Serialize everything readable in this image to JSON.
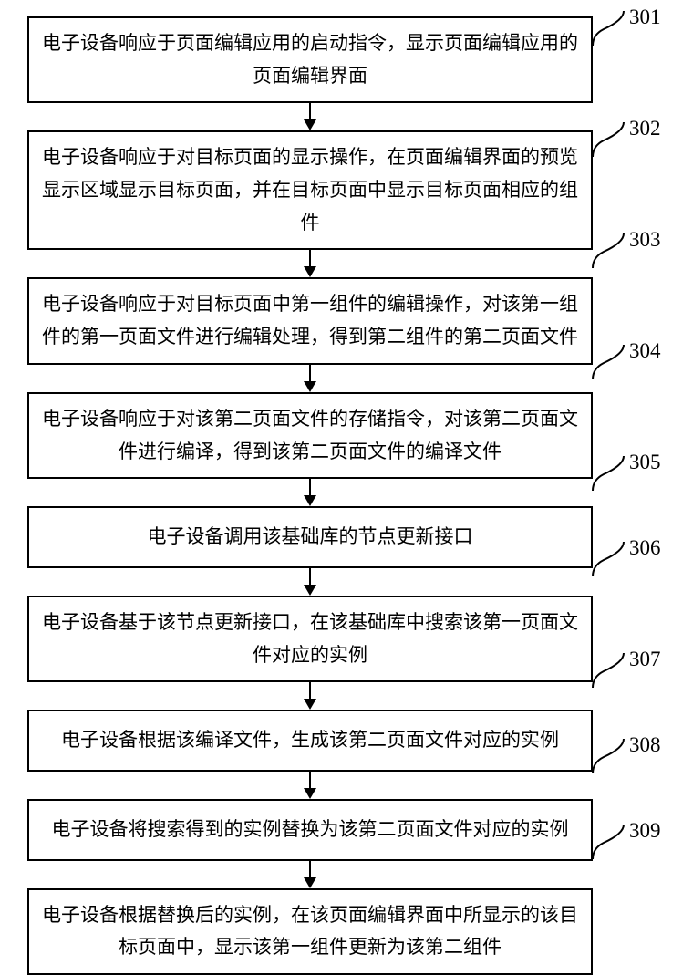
{
  "flowchart": {
    "type": "flowchart",
    "background_color": "#ffffff",
    "border_color": "#000000",
    "text_color": "#000000",
    "font_size": 21,
    "label_font_size": 23,
    "box_border_width": 2,
    "connector_width": 2,
    "steps": [
      {
        "id": "301",
        "lines": 2,
        "text": "电子设备响应于页面编辑应用的启动指令，显示页面编辑应用的页面编辑界面"
      },
      {
        "id": "302",
        "lines": 2,
        "text": "电子设备响应于对目标页面的显示操作，在页面编辑界面的预览显示区域显示目标页面，并在目标页面中显示目标页面相应的组件"
      },
      {
        "id": "303",
        "lines": 2,
        "text": "电子设备响应于对目标页面中第一组件的编辑操作，对该第一组件的第一页面文件进行编辑处理，得到第二组件的第二页面文件"
      },
      {
        "id": "304",
        "lines": 2,
        "text": "电子设备响应于对该第二页面文件的存储指令，对该第二页面文件进行编译，得到该第二页面文件的编译文件"
      },
      {
        "id": "305",
        "lines": 1,
        "text": "电子设备调用该基础库的节点更新接口"
      },
      {
        "id": "306",
        "lines": 2,
        "text": "电子设备基于该节点更新接口，在该基础库中搜索该第一页面文件对应的实例"
      },
      {
        "id": "307",
        "lines": 1,
        "text": "电子设备根据该编译文件，生成该第二页面文件对应的实例"
      },
      {
        "id": "308",
        "lines": 1,
        "text": "电子设备将搜索得到的实例替换为该第二页面文件对应的实例"
      },
      {
        "id": "309",
        "lines": 2,
        "text": "电子设备根据替换后的实例，在该页面编辑界面中所显示的该目标页面中，显示该第一组件更新为该第二组件"
      }
    ]
  }
}
